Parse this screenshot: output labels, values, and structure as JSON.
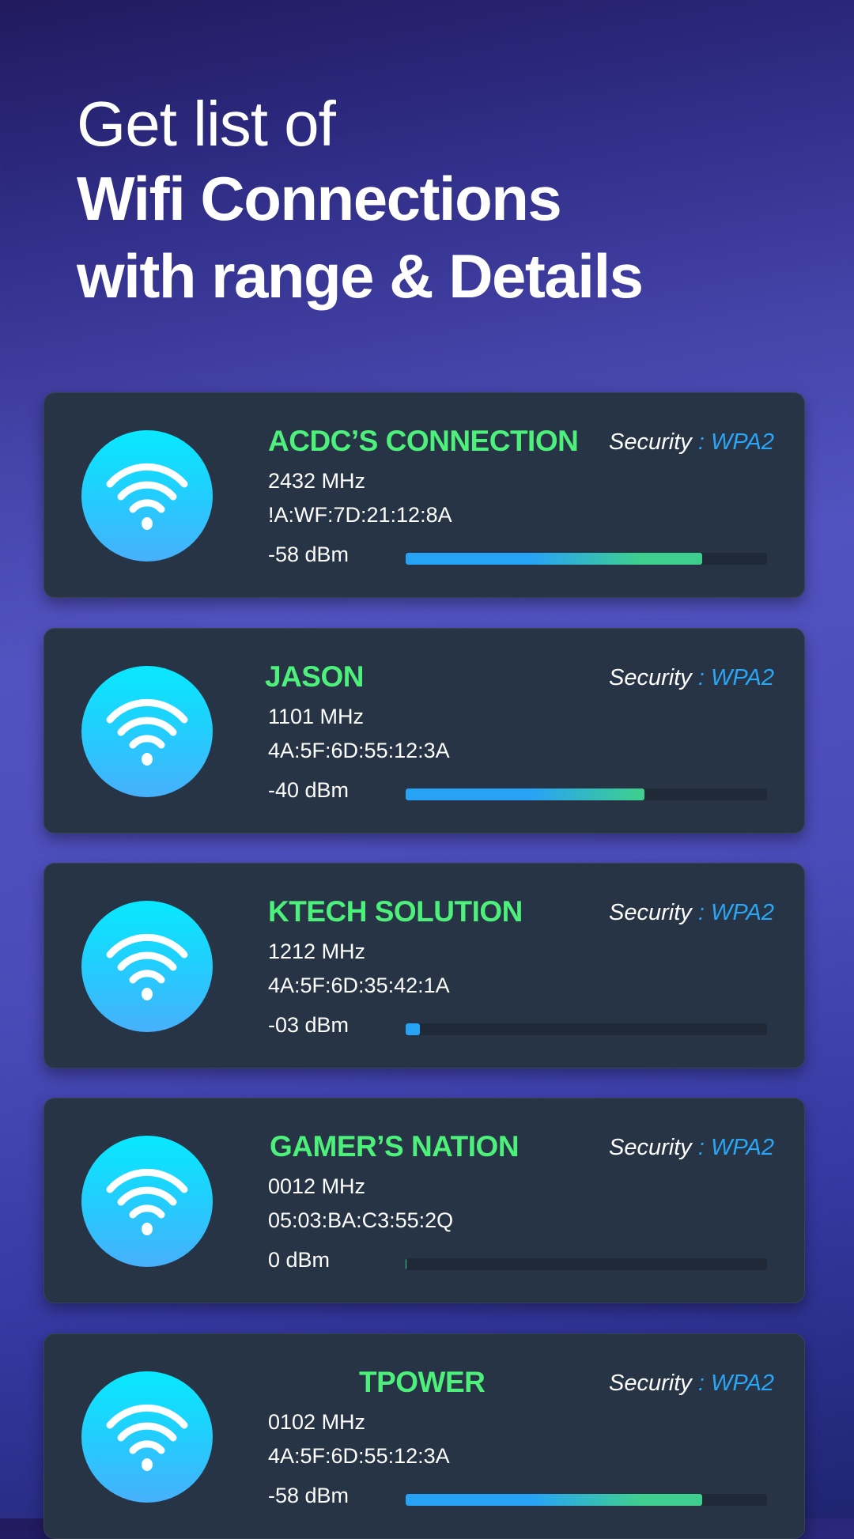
{
  "headline": {
    "line1": "Get list of",
    "line2": "Wifi Connections",
    "line3": "with range & Details"
  },
  "colors": {
    "name": "#4cf07a",
    "security_value": "#2aa6f5",
    "card": "#273445",
    "bar_start": "#27a3f6",
    "bar_end": "#3ecf8e"
  },
  "security_label": "Security",
  "networks": [
    {
      "name": "ACDC’S CONNECTION",
      "security": ": WPA2",
      "frequency": "2432 MHz",
      "mac": "!A:WF:7D:21:12:8A",
      "signal": "-58 dBm",
      "signal_fraction": 0.82,
      "icon": "wifi-icon"
    },
    {
      "name": "JASON",
      "security": ": WPA2",
      "frequency": "1101 MHz",
      "mac": "4A:5F:6D:55:12:3A",
      "signal": "-40 dBm",
      "signal_fraction": 0.66,
      "icon": "wifi-icon"
    },
    {
      "name": "KTECH SOLUTION",
      "security": ": WPA2",
      "frequency": "1212 MHz",
      "mac": "4A:5F:6D:35:42:1A",
      "signal": "-03 dBm",
      "signal_fraction": 0.04,
      "icon": "wifi-icon"
    },
    {
      "name": "GAMER’S NATION",
      "security": ": WPA2",
      "frequency": "0012 MHz",
      "mac": "05:03:BA:C3:55:2Q",
      "signal": "0 dBm",
      "signal_fraction": 0.0,
      "icon": "wifi-icon"
    },
    {
      "name": "TPOWER",
      "security": ": WPA2",
      "frequency": "0102 MHz",
      "mac": "4A:5F:6D:55:12:3A",
      "signal": "-58 dBm",
      "signal_fraction": 0.82,
      "icon": "wifi-icon"
    }
  ]
}
